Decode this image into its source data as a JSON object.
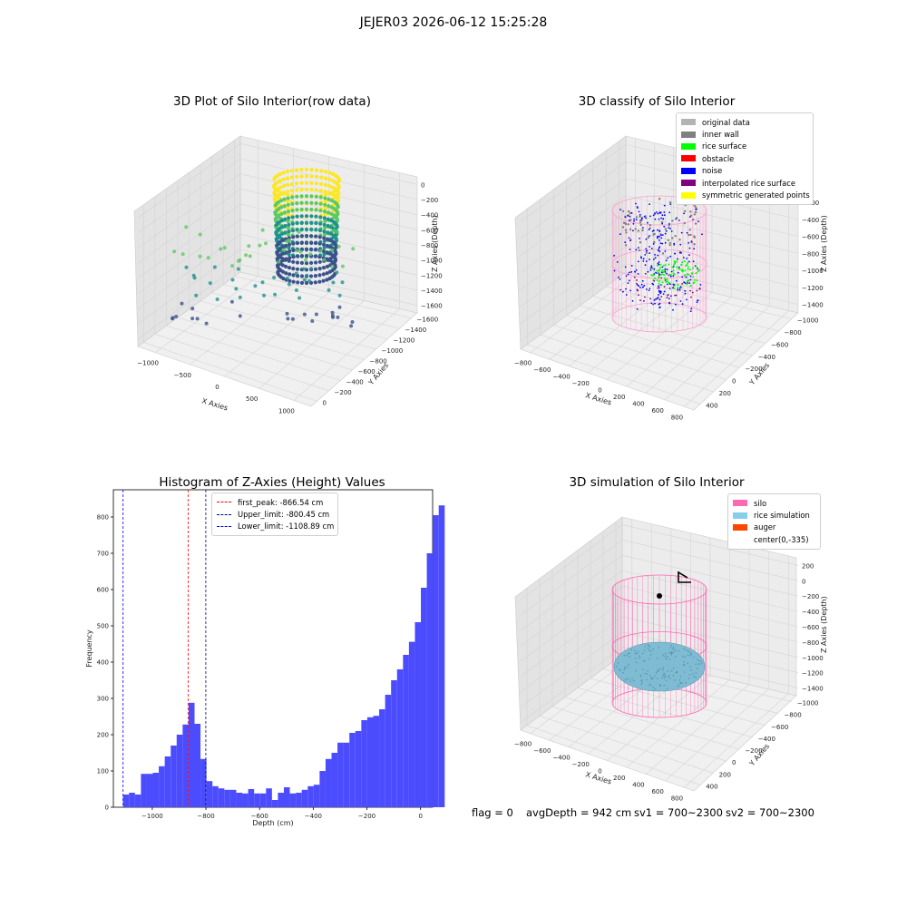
{
  "figure": {
    "suptitle": "JEJER03 2026-06-12 15:25:28",
    "footer": {
      "flag": "flag = 0",
      "avg_depth": "avgDepth = 942 cm",
      "sv1": "sv1 = 700~2300",
      "sv2": "sv2 = 700~2300"
    }
  },
  "panels": {
    "raw": {
      "title": "3D Plot of Silo Interior(row data)",
      "xlabel": "X Axies",
      "ylabel": "Y Axies",
      "zlabel": "Z Axies (Depth)",
      "xticks": [
        "−1000",
        "−500",
        "0",
        "500",
        "1000"
      ],
      "yticks": [
        "0",
        "−200",
        "−400",
        "−600",
        "−800",
        "−1000",
        "−1200",
        "−1400",
        "−1600"
      ],
      "zticks": [
        "0",
        "−200",
        "−400",
        "−600",
        "−800",
        "−1000",
        "−1200",
        "−1400",
        "−1600"
      ],
      "colormap": [
        "#fde725",
        "#5ec962",
        "#21918c",
        "#3b528b"
      ]
    },
    "classify": {
      "title": "3D classify of Silo Interior",
      "xlabel": "X Axies",
      "ylabel": "Y Axies",
      "zlabel": "Z Axies (Depth)",
      "xticks": [
        "−800",
        "−600",
        "−400",
        "−200",
        "0",
        "200",
        "400",
        "600",
        "800"
      ],
      "yticks": [
        "400",
        "200",
        "0",
        "−200",
        "−400",
        "−600",
        "−800",
        "−1000"
      ],
      "zticks": [
        "0",
        "−200",
        "−400",
        "−600",
        "−800",
        "−1000",
        "−1200",
        "−1400"
      ],
      "legend": [
        {
          "label": "original data",
          "color": "#b3b3b3"
        },
        {
          "label": "inner wall",
          "color": "#808080"
        },
        {
          "label": "rice surface",
          "color": "#00ff00"
        },
        {
          "label": "obstacle",
          "color": "#ff0000"
        },
        {
          "label": "noise",
          "color": "#0000ff"
        },
        {
          "label": "interpolated rice surface",
          "color": "#800080"
        },
        {
          "label": "symmetric generated points",
          "color": "#ffff00"
        }
      ]
    },
    "histogram": {
      "title": "Histogram of Z-Axies (Height) Values",
      "xlabel": "Depth (cm)",
      "ylabel": "Frequency",
      "bar_color": "#4c4cff",
      "legend": [
        {
          "label": "first_peak: -866.54 cm",
          "color": "#ff0000"
        },
        {
          "label": "Upper_limit: -800.45 cm",
          "color": "#00008b"
        },
        {
          "label": "Lower_limit: -1108.89 cm",
          "color": "#0000ff"
        }
      ]
    },
    "simulation": {
      "title": "3D simulation of Silo Interior",
      "xlabel": "X Axies",
      "ylabel": "Y Axies",
      "zlabel": "Z Axies (Depth)",
      "xticks": [
        "−800",
        "−600",
        "−400",
        "−200",
        "0",
        "200",
        "400",
        "600",
        "800"
      ],
      "yticks": [
        "400",
        "200",
        "0",
        "−200",
        "−400",
        "−600",
        "−800",
        "−1000"
      ],
      "zticks": [
        "200",
        "0",
        "−200",
        "−400",
        "−600",
        "−800",
        "−1000",
        "−1200",
        "−1400"
      ],
      "legend": [
        {
          "label": "silo",
          "color": "#ff69b4"
        },
        {
          "label": "rice simulation",
          "color": "#87ceeb"
        },
        {
          "label": "auger",
          "color": "#ff4500"
        },
        {
          "label": "center(0,-335)",
          "color": "#ffffff"
        }
      ]
    }
  },
  "chart_data": [
    {
      "type": "scatter",
      "title": "3D Plot of Silo Interior(row data)",
      "xlabel": "X Axies",
      "ylabel": "Y Axies",
      "zlabel": "Z Axies (Depth)",
      "xlim": [
        -1200,
        1000
      ],
      "ylim": [
        -1600,
        100
      ],
      "zlim": [
        -1700,
        100
      ],
      "grid": true
    },
    {
      "type": "scatter",
      "title": "3D classify of Silo Interior",
      "xlabel": "X Axies",
      "ylabel": "Y Axies",
      "zlabel": "Z Axies (Depth)",
      "xlim": [
        -850,
        850
      ],
      "ylim": [
        -1100,
        500
      ],
      "zlim": [
        -1500,
        100
      ],
      "legend_position": "top-right",
      "series": [
        {
          "name": "original data"
        },
        {
          "name": "inner wall"
        },
        {
          "name": "rice surface"
        },
        {
          "name": "obstacle"
        },
        {
          "name": "noise"
        },
        {
          "name": "interpolated rice surface"
        },
        {
          "name": "symmetric generated points"
        }
      ]
    },
    {
      "type": "bar",
      "title": "Histogram of Z-Axies (Height) Values",
      "xlabel": "Depth (cm)",
      "ylabel": "Frequency",
      "xlim": [
        -1145,
        45
      ],
      "ylim": [
        0,
        875
      ],
      "xticks": [
        -1000,
        -800,
        -600,
        -400,
        -200,
        0
      ],
      "yticks": [
        0,
        100,
        200,
        300,
        400,
        500,
        600,
        700,
        800
      ],
      "bin_width": 22.2,
      "bin_start": -1108.89,
      "values": [
        35,
        40,
        35,
        92,
        92,
        95,
        113,
        140,
        170,
        200,
        228,
        288,
        230,
        133,
        72,
        58,
        52,
        48,
        48,
        40,
        38,
        50,
        38,
        38,
        52,
        20,
        40,
        55,
        38,
        40,
        48,
        58,
        62,
        100,
        133,
        150,
        178,
        178,
        205,
        210,
        240,
        248,
        252,
        270,
        310,
        350,
        380,
        420,
        456,
        510,
        605,
        700,
        805,
        832
      ],
      "vlines": [
        {
          "x": -866.54,
          "label": "first_peak: -866.54 cm",
          "color": "#ff0000"
        },
        {
          "x": -800.45,
          "label": "Upper_limit: -800.45 cm",
          "color": "#00008b"
        },
        {
          "x": -1108.89,
          "label": "Lower_limit: -1108.89 cm",
          "color": "#0000ff"
        }
      ],
      "legend_position": "top-center"
    },
    {
      "type": "scatter",
      "title": "3D simulation of Silo Interior",
      "xlabel": "X Axies",
      "ylabel": "Y Axies",
      "zlabel": "Z Axies (Depth)",
      "xlim": [
        -850,
        850
      ],
      "ylim": [
        -1100,
        500
      ],
      "zlim": [
        -1500,
        250
      ],
      "legend_position": "top-right",
      "series": [
        {
          "name": "silo"
        },
        {
          "name": "rice simulation"
        },
        {
          "name": "auger"
        },
        {
          "name": "center(0,-335)"
        }
      ]
    }
  ]
}
